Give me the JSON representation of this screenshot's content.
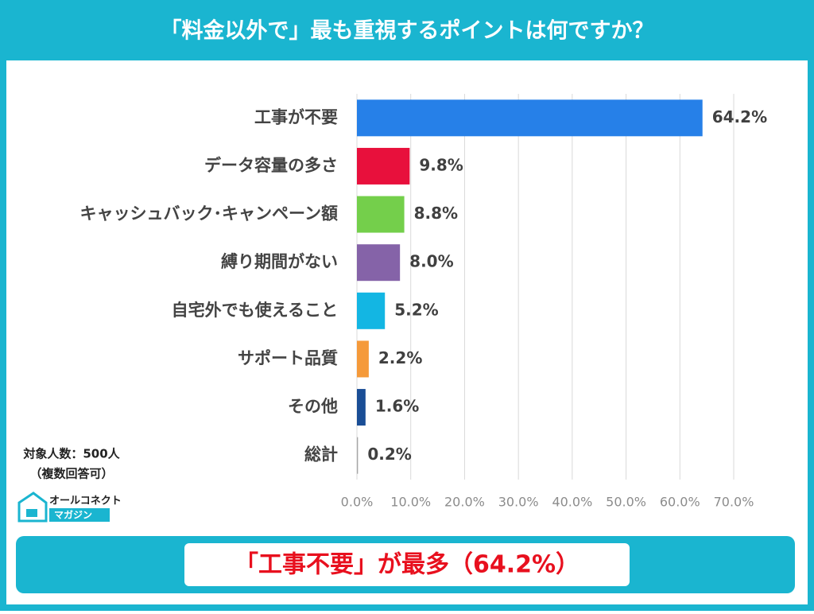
{
  "chart_data": {
    "type": "bar",
    "orientation": "horizontal",
    "title": "「料金以外で」最も重視するポイントは何ですか？",
    "categories": [
      "工事が不要",
      "データ容量の多さ",
      "キャッシュバック･キャンペーン額",
      "縛り期間がない",
      "自宅外でも使えること",
      "サポート品質",
      "その他",
      "総計"
    ],
    "values": [
      64.2,
      9.8,
      8.8,
      8.0,
      5.2,
      2.2,
      1.6,
      0.2
    ],
    "value_labels": [
      "64.2%",
      "9.8%",
      "8.8%",
      "8.0%",
      "5.2%",
      "2.2%",
      "1.6%",
      "0.2%"
    ],
    "colors": [
      "#2680e8",
      "#e8103c",
      "#74cf4b",
      "#8563a8",
      "#13b6e3",
      "#f59a3a",
      "#1a4e96",
      "#a6a6a6"
    ],
    "xlim": [
      0,
      70
    ],
    "xticks": [
      {
        "value": 0,
        "label": "0.0%"
      },
      {
        "value": 10,
        "label": "10.0%"
      },
      {
        "value": 20,
        "label": "20.0%"
      },
      {
        "value": 30,
        "label": "30.0%"
      },
      {
        "value": 40,
        "label": "40.0%"
      },
      {
        "value": 50,
        "label": "50.0%"
      },
      {
        "value": 60,
        "label": "60.0%"
      },
      {
        "value": 70,
        "label": "70.0%"
      }
    ],
    "grid": true
  },
  "notes": [
    "対象人数：500人",
    "（複数回答可）"
  ],
  "logo": {
    "name": "オールコネクト",
    "sub": "マガジン"
  },
  "conclusion": "「工事不要」が最多（64.2%）"
}
